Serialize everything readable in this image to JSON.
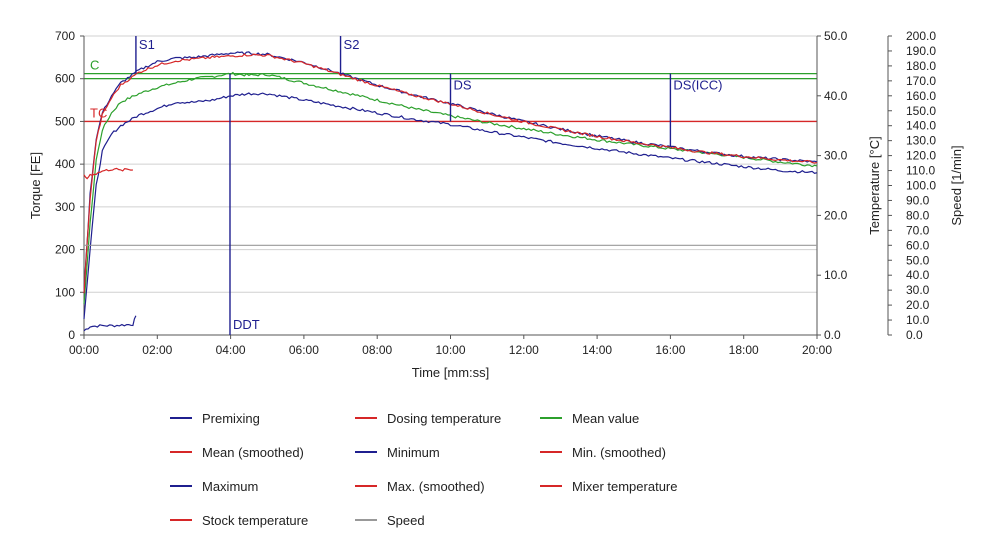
{
  "chart_data": {
    "type": "line",
    "xlabel": "Time [mm:ss]",
    "ylabel_left": "Torque [FE]",
    "ylabel_right1": "Temperature [°C]",
    "ylabel_right2": "Speed [1/min]",
    "xlim_seconds": [
      0,
      1200
    ],
    "x_ticks": [
      "00:00",
      "02:00",
      "04:00",
      "06:00",
      "08:00",
      "10:00",
      "12:00",
      "14:00",
      "16:00",
      "18:00",
      "20:00"
    ],
    "torque_ylim": [
      0,
      700
    ],
    "torque_ticks": [
      "0",
      "100",
      "200",
      "300",
      "400",
      "500",
      "600",
      "700"
    ],
    "temperature_ylim": [
      0,
      50
    ],
    "temperature_ticks": [
      "0.0",
      "10.0",
      "20.0",
      "30.0",
      "40.0",
      "50.0"
    ],
    "speed_ylim": [
      0,
      200
    ],
    "speed_ticks": [
      "0.0",
      "10.0",
      "20.0",
      "30.0",
      "40.0",
      "50.0",
      "60.0",
      "70.0",
      "80.0",
      "90.0",
      "100.0",
      "110.0",
      "120.0",
      "130.0",
      "140.0",
      "150.0",
      "160.0",
      "170.0",
      "180.0",
      "190.0",
      "200.0"
    ],
    "grid": "horizontal",
    "reference_lines": [
      {
        "label": "C",
        "torque": 612,
        "color": "#2ca02c"
      },
      {
        "label": "TC",
        "torque": 500,
        "color": "#d62728"
      }
    ],
    "markers": [
      {
        "label": "S1",
        "time": "01:25",
        "from_torque": 612,
        "to_torque": 700
      },
      {
        "label": "DDT",
        "time": "03:59",
        "from_torque": 0,
        "to_torque": 612
      },
      {
        "label": "S2",
        "time": "07:00",
        "from_torque": 612,
        "to_torque": 700
      },
      {
        "label": "DS",
        "time": "10:00",
        "from_torque": 500,
        "to_torque": 612
      },
      {
        "label": "DS(ICC)",
        "time": "16:00",
        "from_torque": 440,
        "to_torque": 612
      }
    ],
    "series": [
      {
        "name": "Premixing",
        "color": "#1f1f8f",
        "x": [
          "00:00",
          "00:10",
          "00:30",
          "00:50",
          "01:10",
          "01:20",
          "01:25"
        ],
        "y": [
          10,
          20,
          22,
          22,
          24,
          25,
          45
        ]
      },
      {
        "name": "Dosing temperature",
        "color": "#d62728",
        "x": [],
        "y": []
      },
      {
        "name": "Mean value",
        "color": "#2ca02c",
        "x": [
          "00:00",
          "00:10",
          "00:20",
          "00:30",
          "00:45",
          "01:00",
          "01:30",
          "02:00",
          "02:30",
          "03:00",
          "03:30",
          "04:00",
          "04:30",
          "05:00",
          "06:00",
          "07:00",
          "08:00",
          "09:00",
          "10:00",
          "11:00",
          "12:00",
          "13:00",
          "14:00",
          "15:00",
          "16:00",
          "17:00",
          "18:00",
          "19:00",
          "20:00"
        ],
        "y": [
          70,
          260,
          410,
          480,
          520,
          545,
          565,
          580,
          590,
          600,
          605,
          612,
          608,
          610,
          590,
          570,
          550,
          530,
          513,
          497,
          483,
          469,
          457,
          446,
          436,
          426,
          416,
          405,
          396
        ]
      },
      {
        "name": "Mean (smoothed)",
        "color": "#d62728",
        "x": [],
        "y": []
      },
      {
        "name": "Minimum",
        "color": "#1f1f8f",
        "x": [
          "00:00",
          "00:10",
          "00:20",
          "00:30",
          "00:45",
          "01:00",
          "01:30",
          "02:00",
          "02:30",
          "03:00",
          "03:30",
          "04:00",
          "04:30",
          "05:00",
          "06:00",
          "07:00",
          "08:00",
          "09:00",
          "10:00",
          "11:00",
          "12:00",
          "13:00",
          "14:00",
          "15:00",
          "16:00",
          "17:00",
          "18:00",
          "19:00",
          "20:00"
        ],
        "y": [
          40,
          200,
          350,
          430,
          470,
          490,
          515,
          530,
          545,
          545,
          550,
          560,
          565,
          565,
          550,
          535,
          520,
          505,
          493,
          477,
          463,
          449,
          437,
          425,
          414,
          404,
          394,
          385,
          380
        ]
      },
      {
        "name": "Min. (smoothed)",
        "color": "#d62728",
        "x": [],
        "y": []
      },
      {
        "name": "Maximum",
        "color": "#1f1f8f",
        "x": [
          "00:00",
          "00:10",
          "00:20",
          "00:30",
          "00:45",
          "01:00",
          "01:30",
          "02:00",
          "02:30",
          "03:00",
          "03:30",
          "04:00",
          "04:30",
          "05:00",
          "06:00",
          "07:00",
          "08:00",
          "09:00",
          "10:00",
          "11:00",
          "12:00",
          "13:00",
          "14:00",
          "15:00",
          "16:00",
          "17:00",
          "18:00",
          "19:00",
          "20:00"
        ],
        "y": [
          100,
          330,
          460,
          520,
          560,
          590,
          620,
          640,
          648,
          650,
          655,
          660,
          660,
          657,
          638,
          612,
          585,
          562,
          542,
          520,
          500,
          482,
          466,
          452,
          440,
          428,
          418,
          411,
          405
        ]
      },
      {
        "name": "Max. (smoothed)",
        "color": "#d62728",
        "x": [
          "00:00",
          "00:10",
          "00:20",
          "00:30",
          "00:45",
          "01:00",
          "01:30",
          "02:00",
          "02:30",
          "03:00",
          "03:30",
          "04:00",
          "04:30",
          "05:00",
          "06:00",
          "07:00",
          "08:00",
          "09:00",
          "10:00",
          "11:00",
          "12:00",
          "13:00",
          "14:00",
          "15:00",
          "16:00",
          "17:00",
          "18:00",
          "19:00",
          "20:00"
        ],
        "y": [
          100,
          320,
          455,
          515,
          555,
          585,
          615,
          632,
          642,
          646,
          650,
          653,
          656,
          655,
          636,
          610,
          584,
          561,
          541,
          519,
          499,
          481,
          465,
          451,
          439,
          427,
          418,
          410,
          404
        ]
      },
      {
        "name": "Mixer temperature",
        "color": "#d62728",
        "x": [],
        "y": []
      },
      {
        "name": "Stock temperature",
        "color": "#d62728",
        "axis": "temperature",
        "x": [
          "00:00",
          "00:05",
          "00:10",
          "00:20",
          "00:30",
          "00:40",
          "00:50",
          "01:00",
          "01:10",
          "01:20"
        ],
        "y": [
          26.6,
          26.2,
          26.8,
          27.0,
          27.4,
          27.6,
          27.8,
          27.5,
          27.7,
          27.6
        ]
      },
      {
        "name": "Speed",
        "color": "#999999",
        "axis": "speed",
        "x": [
          "00:00",
          "20:00"
        ],
        "y": [
          60,
          60
        ]
      }
    ]
  },
  "legend": [
    {
      "label": "Premixing",
      "color": "#1f1f8f"
    },
    {
      "label": "Dosing temperature",
      "color": "#d62728"
    },
    {
      "label": "Mean value",
      "color": "#2ca02c"
    },
    {
      "label": "Mean (smoothed)",
      "color": "#d62728"
    },
    {
      "label": "Minimum",
      "color": "#1f1f8f"
    },
    {
      "label": "Min. (smoothed)",
      "color": "#d62728"
    },
    {
      "label": "Maximum",
      "color": "#1f1f8f"
    },
    {
      "label": "Max. (smoothed)",
      "color": "#d62728"
    },
    {
      "label": "Mixer temperature",
      "color": "#d62728"
    },
    {
      "label": "Stock temperature",
      "color": "#d62728"
    },
    {
      "label": "Speed",
      "color": "#999999"
    }
  ]
}
